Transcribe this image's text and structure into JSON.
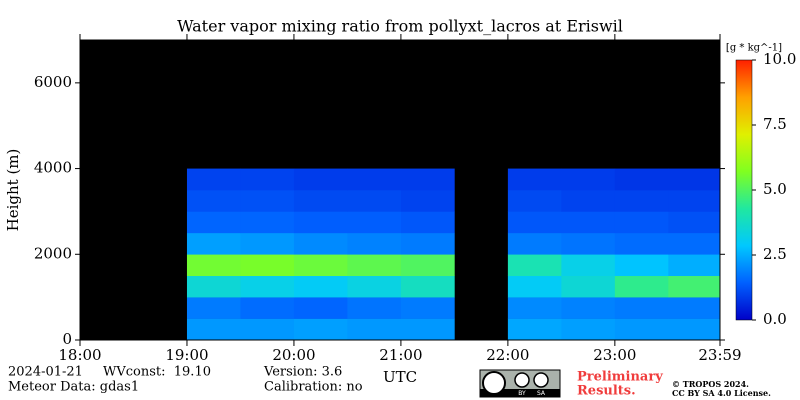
{
  "chart_data": {
    "type": "heatmap",
    "title": "Water vapor mixing ratio from pollyxt_lacros at Eriswil",
    "y_label": "Height (m)",
    "x_label": "UTC",
    "xbins": [
      18,
      18.5,
      19,
      19.5,
      20,
      20.5,
      21,
      21.5,
      22,
      22.5,
      23,
      23.5,
      23.983
    ],
    "ybins": [
      0,
      500,
      1000,
      1500,
      2000,
      2500,
      3000,
      3500,
      4000,
      4500,
      5000,
      5500,
      6000,
      6500,
      7000
    ],
    "z": [
      [
        null,
        null,
        2.2,
        2.2,
        2.3,
        2.2,
        2.2,
        null,
        2.4,
        2.3,
        2.2,
        2.2
      ],
      [
        null,
        null,
        1.8,
        1.6,
        1.5,
        1.7,
        1.8,
        null,
        2.0,
        1.9,
        1.8,
        1.8
      ],
      [
        null,
        null,
        3.5,
        3.2,
        3.0,
        3.3,
        3.8,
        null,
        3.0,
        3.5,
        4.5,
        4.8
      ],
      [
        null,
        null,
        5.5,
        5.6,
        5.4,
        5.2,
        5.0,
        null,
        4.0,
        3.2,
        2.8,
        2.5
      ],
      [
        null,
        null,
        2.3,
        2.2,
        2.0,
        1.9,
        1.8,
        null,
        1.8,
        1.7,
        1.6,
        1.6
      ],
      [
        null,
        null,
        1.5,
        1.5,
        1.4,
        1.4,
        1.3,
        null,
        1.3,
        1.3,
        1.3,
        1.2
      ],
      [
        null,
        null,
        1.2,
        1.2,
        1.1,
        1.1,
        1.0,
        null,
        1.1,
        1.0,
        1.0,
        1.0
      ],
      [
        null,
        null,
        1.0,
        1.0,
        0.9,
        0.9,
        0.9,
        null,
        0.9,
        0.9,
        0.8,
        0.8
      ],
      [
        null,
        null,
        null,
        null,
        null,
        null,
        null,
        null,
        null,
        null,
        null,
        null
      ],
      [
        null,
        null,
        null,
        null,
        null,
        null,
        null,
        null,
        null,
        null,
        null,
        null
      ],
      [
        null,
        null,
        null,
        null,
        null,
        null,
        null,
        null,
        null,
        null,
        null,
        null
      ],
      [
        null,
        null,
        null,
        null,
        null,
        null,
        null,
        null,
        null,
        null,
        null,
        null
      ],
      [
        null,
        null,
        null,
        null,
        null,
        null,
        null,
        null,
        null,
        null,
        null,
        null
      ],
      [
        null,
        null,
        null,
        null,
        null,
        null,
        null,
        null,
        null,
        null,
        null,
        null
      ]
    ],
    "xlim": [
      18,
      23.983
    ],
    "xticks": [
      {
        "value": 18,
        "label": "18:00"
      },
      {
        "value": 19,
        "label": "19:00"
      },
      {
        "value": 20,
        "label": "20:00"
      },
      {
        "value": 21,
        "label": "21:00"
      },
      {
        "value": 22,
        "label": "22:00"
      },
      {
        "value": 23,
        "label": "23:00"
      },
      {
        "value": 23.983,
        "label": "23:59"
      }
    ],
    "ylim": [
      0,
      7000
    ],
    "yticks": [
      0,
      2000,
      4000,
      6000
    ],
    "clim": [
      0,
      10
    ],
    "cticks": [
      {
        "value": 0,
        "label": "0.0"
      },
      {
        "value": 2.5,
        "label": "2.5"
      },
      {
        "value": 5,
        "label": "5.0"
      },
      {
        "value": 7.5,
        "label": "7.5"
      },
      {
        "value": 10,
        "label": "10.0"
      }
    ],
    "colorbar_label": "[g * kg^-1]",
    "colormap": [
      "#0000c8",
      "#0060ff",
      "#00c8ff",
      "#20e8a0",
      "#80ff20",
      "#e0f000",
      "#ffa000",
      "#ff2000"
    ],
    "background": "#000000"
  },
  "footer": {
    "date": "2024-01-21",
    "wvconst": "WVconst:  19.10",
    "meteor": "Meteor Data: gdas1",
    "version": "Version: 3.6",
    "calibration": "Calibration: no",
    "preliminary": [
      "Preliminary",
      "Results."
    ],
    "badge": [
      "BY",
      "SA"
    ],
    "copyright": "© TROPOS 2024.",
    "license": "CC BY SA 4.0 License."
  }
}
